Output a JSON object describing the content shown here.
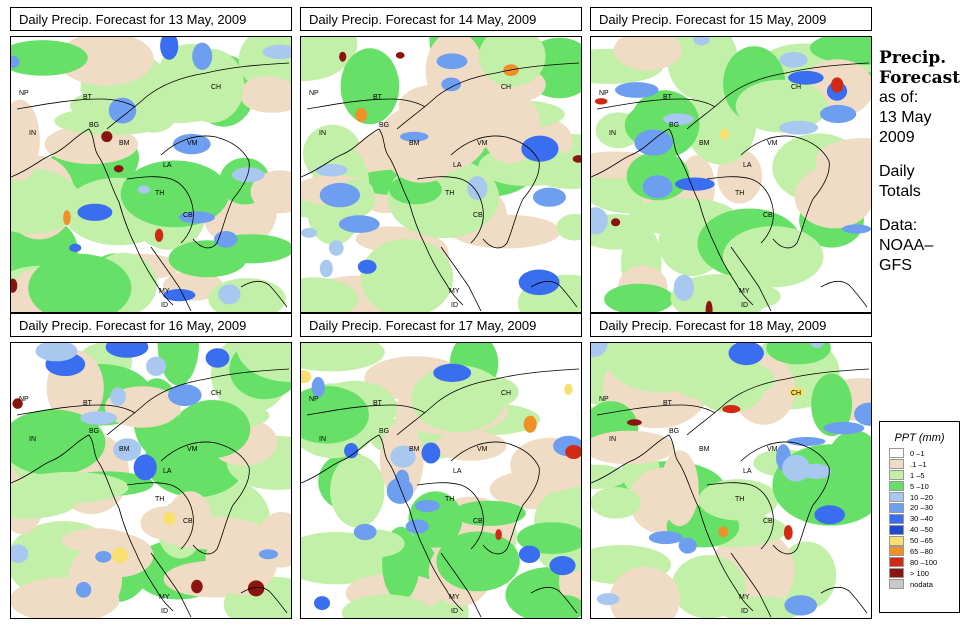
{
  "panels": [
    {
      "title": "Daily Precip. Forecast for  13 May, 2009"
    },
    {
      "title": "Daily Precip. Forecast for  14 May, 2009"
    },
    {
      "title": "Daily Precip. Forecast for  15 May, 2009"
    },
    {
      "title": "Daily Precip. Forecast for  16 May, 2009"
    },
    {
      "title": "Daily Precip. Forecast for  17 May, 2009"
    },
    {
      "title": "Daily Precip. Forecast for  18 May, 2009"
    }
  ],
  "country_labels": {
    "np": "NP",
    "bt": "BT",
    "bg": "BG",
    "in": "IN",
    "ch": "CH",
    "bm": "BM",
    "vm": "VM",
    "la": "LA",
    "th": "TH",
    "cb": "CB",
    "my": "MY",
    "id": "ID"
  },
  "sidebar": {
    "heading1": "Precip.",
    "heading2": "Forecast",
    "line_asof": "as of:",
    "line_date1": "13 May",
    "line_date2": "2009",
    "line_daily": "Daily",
    "line_totals": "Totals",
    "line_data": "Data:",
    "line_source1": "NOAA–",
    "line_source2": "GFS"
  },
  "legend": {
    "title": "PPT (mm)",
    "items": [
      {
        "label": "0 –1",
        "color": "#ffffff"
      },
      {
        "label": ".1 –1",
        "color": "#f0dcc4"
      },
      {
        "label": "1 –5",
        "color": "#c3f0a8"
      },
      {
        "label": "5 –10",
        "color": "#66e066"
      },
      {
        "label": "10 –20",
        "color": "#a8c8f0"
      },
      {
        "label": "20 –30",
        "color": "#6e9ef0"
      },
      {
        "label": "30 –40",
        "color": "#3a6ef0"
      },
      {
        "label": "40 –50",
        "color": "#1e4ad2"
      },
      {
        "label": "50 –65",
        "color": "#f8e070"
      },
      {
        "label": "65 –80",
        "color": "#f09028"
      },
      {
        "label": "80 –100",
        "color": "#d02a14"
      },
      {
        "label": "> 100",
        "color": "#8c1410"
      },
      {
        "label": "nodata",
        "color": "#c8c8c8"
      }
    ]
  }
}
